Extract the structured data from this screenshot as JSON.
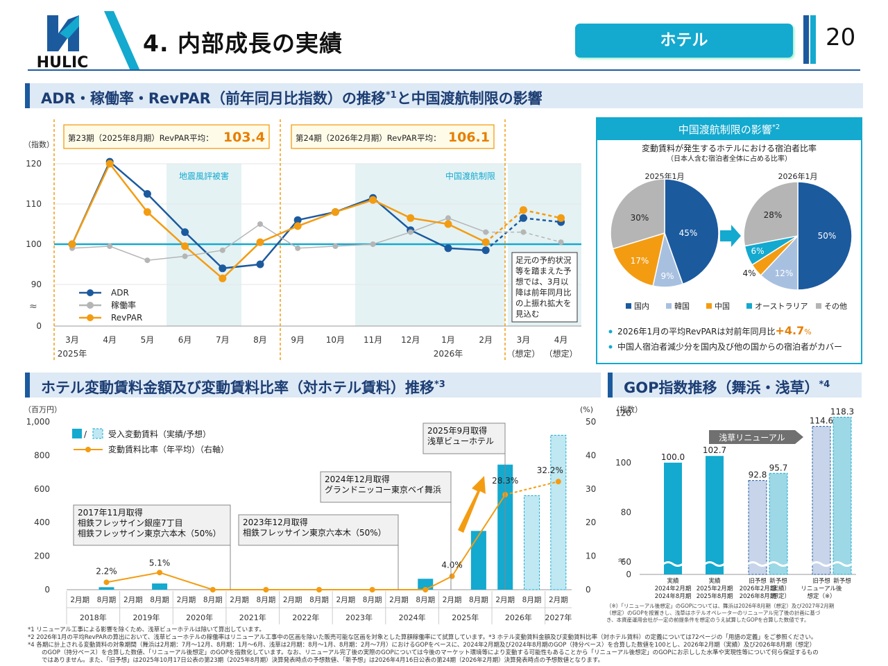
{
  "header": {
    "title": "4. 内部成長の実績",
    "tag": "ホテル",
    "page": "20",
    "logo_text": "HULIC"
  },
  "section1": {
    "title": "ADR・稼働率・RevPAR（前年同月比指数）の推移",
    "sup": "*1",
    "title_tail": "と中国渡航制限の影響"
  },
  "section2": {
    "title": "ホテル変動賃料金額及び変動賃料比率（対ホテル賃料）推移",
    "sup": "*3"
  },
  "section3": {
    "title": "GOP指数推移（舞浜・浅草）",
    "sup": "*4"
  },
  "colors": {
    "navy": "#1c5a9e",
    "cyan": "#14a9cf",
    "orange": "#f39c12",
    "gray": "#b5b5b5",
    "shade": "#e4f2f4"
  },
  "chart_data": [
    {
      "type": "line",
      "ylabel": "（指数）",
      "categories": [
        "3月",
        "4月",
        "5月",
        "6月",
        "7月",
        "8月",
        "9月",
        "10月",
        "11月",
        "12月",
        "1月",
        "2月",
        "3月",
        "4月"
      ],
      "year_labels": [
        "2025年",
        "2026年"
      ],
      "forecast_labels": [
        "（想定）",
        "（想定）"
      ],
      "yticks": [
        "120",
        "110",
        "100",
        "90",
        "0"
      ],
      "series": [
        {
          "name": "ADR",
          "values": [
            100,
            120.5,
            112.5,
            103,
            94,
            95,
            106,
            108,
            111.5,
            103.5,
            99,
            98.5,
            106.5,
            105.5
          ]
        },
        {
          "name": "稼働率",
          "values": [
            99,
            99.5,
            96,
            97,
            98.5,
            105,
            99,
            99.5,
            100,
            103,
            106.5,
            103,
            103,
            100.5
          ]
        },
        {
          "name": "RevPAR",
          "values": [
            100,
            120,
            108,
            99.5,
            91.5,
            100.5,
            104.5,
            108,
            111,
            106.5,
            105,
            100.5,
            108.5,
            106.5
          ]
        }
      ],
      "periods": [
        {
          "label": "第23期（2025年8月期）RevPAR平均：",
          "value": "103.4"
        },
        {
          "label": "第24期（2026年2月期）RevPAR平均：",
          "value": "106.1"
        }
      ],
      "shaded": [
        "地震風評被害",
        "中国渡航制限"
      ],
      "note": [
        "足元の予約状況",
        "等を踏まえた予",
        "想では、3月以",
        "降は前年同月比",
        "の上振れ拡大を",
        "見込む"
      ]
    },
    {
      "type": "pie",
      "title": "中国渡航制限の影響",
      "title_sup": "*2",
      "subtitle": "変動賃料が発生するホテルにおける宿泊者比率",
      "subtitle2": "（日本人含む宿泊者全体に占める比率）",
      "legend": [
        "国内",
        "韓国",
        "中国",
        "オーストラリア",
        "その他"
      ],
      "pies": [
        {
          "label": "2025年1月",
          "values": [
            45,
            9,
            17,
            0,
            30
          ],
          "texts": [
            "45%",
            "9%",
            "17%",
            "",
            "30%"
          ]
        },
        {
          "label": "2026年1月",
          "values": [
            50,
            12,
            4,
            6,
            28
          ],
          "texts": [
            "50%",
            "12%",
            "4%",
            "6%",
            "28%"
          ]
        }
      ],
      "bullets": [
        {
          "text": "2026年1月の平均RevPARは対前年同月比",
          "highlight": "+4.7",
          "unit": "%"
        },
        {
          "text": "中国人宿泊者減少分を国内及び他の国からの宿泊者がカバー",
          "highlight": "",
          "unit": ""
        }
      ]
    },
    {
      "type": "bar",
      "ylabel_left": "（百万円）",
      "ylabel_right": "(%)",
      "yticks_left": [
        "1,000",
        "800",
        "600",
        "400",
        "200",
        "0"
      ],
      "yticks_right": [
        "50",
        "40",
        "30",
        "20",
        "10",
        "0"
      ],
      "legend": [
        "受入変動賃料（実績/予想）",
        "変動賃料比率（年平均）（右軸）"
      ],
      "legend_slash": "/",
      "periods": [
        "2月期",
        "8月期"
      ],
      "years": [
        "2018年",
        "2019年",
        "2020年",
        "2021年",
        "2022年",
        "2023年",
        "2024年",
        "2025年",
        "2026年",
        "2027年"
      ],
      "bars": [
        0,
        15,
        0,
        37,
        0,
        0,
        0,
        0,
        0,
        0,
        0,
        0,
        0,
        65,
        0,
        350,
        745,
        560,
        920
      ],
      "bar_forecast": [
        false,
        false,
        false,
        false,
        false,
        false,
        false,
        false,
        false,
        false,
        false,
        false,
        false,
        false,
        false,
        false,
        false,
        true,
        true
      ],
      "ratio_points": [
        {
          "i": 1,
          "v": 2.2
        },
        {
          "i": 3,
          "v": 5.1
        },
        {
          "i": 5,
          "v": 0
        },
        {
          "i": 7,
          "v": 0
        },
        {
          "i": 9,
          "v": 0
        },
        {
          "i": 11,
          "v": 0
        },
        {
          "i": 13,
          "v": 0
        },
        {
          "i": 14,
          "v": 4.0
        },
        {
          "i": 16,
          "v": 28.3
        },
        {
          "i": 18,
          "v": 32.2
        }
      ],
      "ratio_labels": [
        "2.2%",
        "5.1%",
        "4.0%",
        "28.3%",
        "32.2%"
      ],
      "annotations": [
        [
          "2017年11月取得",
          "相鉄フレッサイン銀座7丁目",
          "相鉄フレッサイン東京六本木（50%）"
        ],
        [
          "2023年12月取得",
          "相鉄フレッサイン東京六本木（50%）"
        ],
        [
          "2024年12月取得",
          "グランドニッコー東京ベイ舞浜"
        ],
        [
          "2025年9月取得",
          "浅草ビューホテル"
        ]
      ]
    },
    {
      "type": "bar",
      "ylabel": "（指数）",
      "yticks": [
        "120",
        "100",
        "80",
        "60",
        "0"
      ],
      "values": [
        100.0,
        102.7,
        92.8,
        95.7,
        114.6,
        118.3
      ],
      "value_labels": [
        "100.0",
        "102.7",
        "92.8",
        "95.7",
        "114.6",
        "118.3"
      ],
      "forecast": [
        false,
        false,
        true,
        true,
        true,
        true
      ],
      "arrow_label": "浅草リニューアル",
      "xlabels": [
        [
          "実績",
          "2024年2月期",
          "2024年8月期"
        ],
        [
          "実績",
          "2025年2月期",
          "2025年8月期"
        ],
        [
          "旧予想",
          "2026年2月期",
          "2026年8月期"
        ],
        [
          "新予想",
          "（実績）",
          "（想定）"
        ],
        [
          "旧予想",
          "リニューアル後",
          "想定（※）"
        ],
        [
          "新予想",
          "",
          ""
        ]
      ],
      "note": [
        "（※）「リニューアル後想定」のGOPについては、舞浜は2026年8月期（想定）及び2027年2月期",
        "（想定）のGOPを按置きし、浅草はホテルオペレーターのリニューアル完了後の計画に基づ",
        "き、本資産運用会社が一定の前提条件を想定のうえ試算したGOPを合算した数値です。"
      ]
    }
  ],
  "footnotes": [
    "*1 リニューアル工事による影響を除くため、浅草ビューホテルは除いて算出しています。",
    "*2 2026年1月の平均RevPARの算出において、浅草ビューホテルの稼働率はリニューアル工事中の区画を除いた販売可能な区画を対象とした算額稼働率にて試算しています。*3 ホテル変動賃料金額及び変動賃料比率（対ホテル賃料）の定義については72ページの「用語の定義」をご参照ください。",
    "*4 各期に計上される変動賃料の対象期間（舞浜は2月期：7月〜12月、8月期：1月〜6月、浅草は2月期：8月〜1月、8月期：2月〜7月）におけるGOPをベースに、2024年2月期及び2024年8月期のGOP（持分ベース）を合算した数値を100とし、2026年2月期（実績）及び2026年8月期（想定）",
    "のGOP（持分ベース）を合算した数値、「リニューアル後想定」のGOPを指数化しています。なお、リニューアル完了後の実際のGOPについては今後のマーケット環境等により変動する可能性もあることから「リニューアル後想定」のGOPにお示しした水準や実現性等について何ら保証するもの",
    "ではありません。また、「旧予想」は2025年10月17日公表の第23期（2025年8月期）決算発表時点の予想数値、「新予想」は2026年4月16日公表の第24期（2026年2月期）決算発表時点の予想数値となります。"
  ]
}
